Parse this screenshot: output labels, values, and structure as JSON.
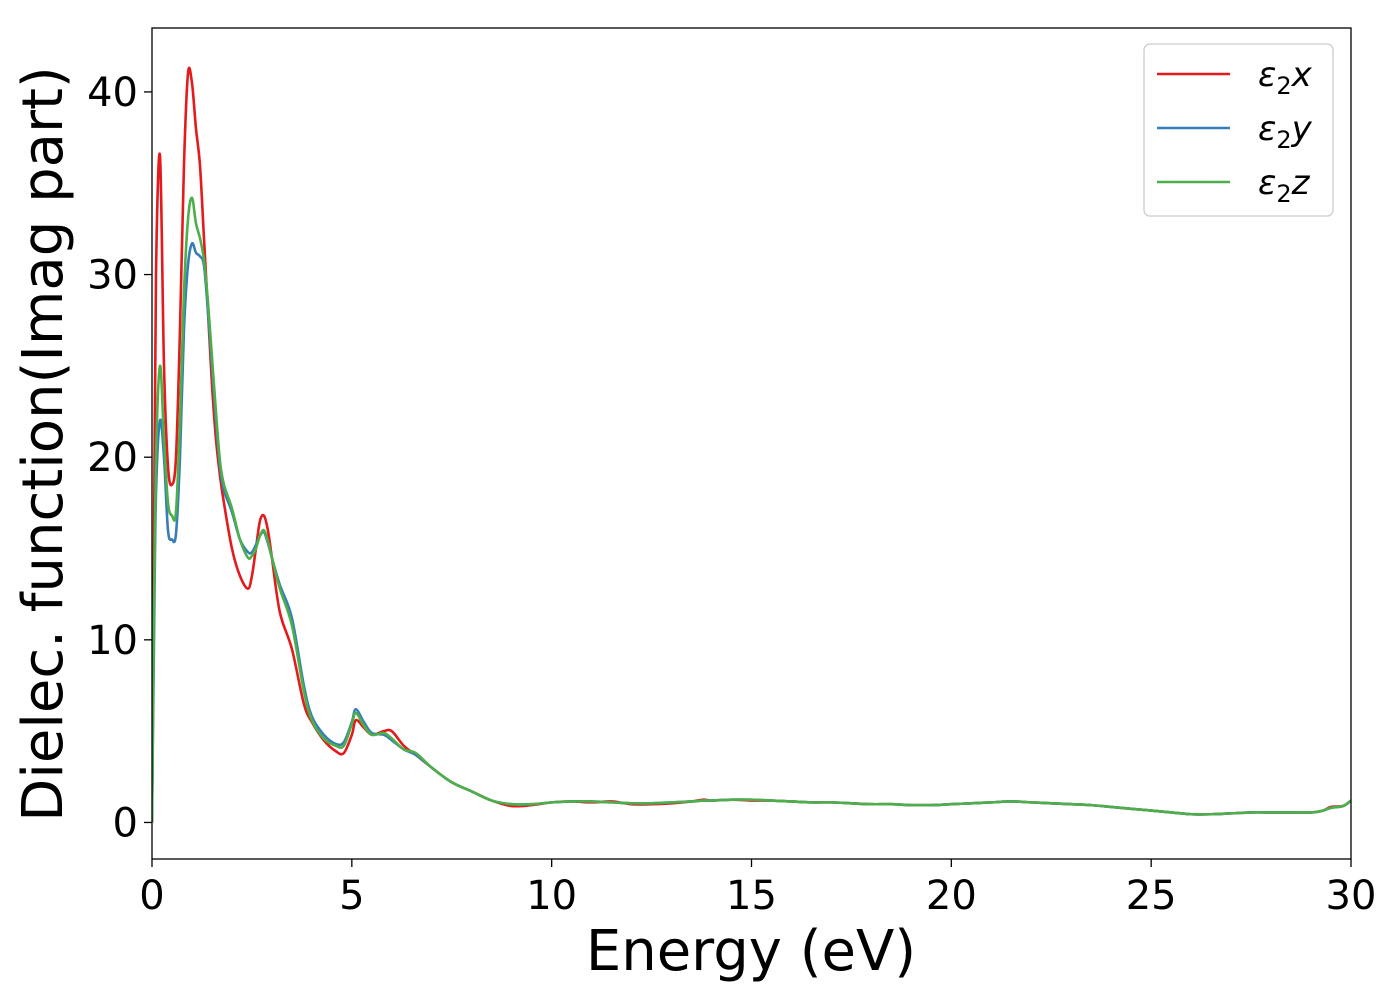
{
  "chart_data": {
    "type": "line",
    "xlabel": "Energy (eV)",
    "ylabel": "Dielec. function(Imag part)",
    "xlim": [
      0,
      30
    ],
    "ylim": [
      -2,
      43.5
    ],
    "xticks": [
      0,
      5,
      10,
      15,
      20,
      25,
      30
    ],
    "yticks": [
      0,
      10,
      20,
      30,
      40
    ],
    "grid": false,
    "legend_position": "top-right",
    "series": [
      {
        "name": "ε₂x",
        "legend": {
          "base": "ε",
          "sub": "2",
          "suffix": "x"
        },
        "color": "#e41a1c",
        "x": [
          0,
          0.05,
          0.1,
          0.2,
          0.3,
          0.4,
          0.5,
          0.6,
          0.7,
          0.8,
          0.9,
          1.0,
          1.1,
          1.2,
          1.3,
          1.4,
          1.5,
          1.6,
          1.7,
          1.8,
          2.0,
          2.2,
          2.4,
          2.5,
          2.6,
          2.7,
          2.8,
          2.9,
          3.0,
          3.2,
          3.5,
          3.8,
          4.0,
          4.3,
          4.6,
          4.8,
          5.0,
          5.1,
          5.3,
          5.5,
          5.8,
          6.0,
          6.3,
          6.6,
          7.0,
          7.5,
          8.0,
          8.5,
          9.0,
          9.5,
          10.0,
          10.5,
          11.0,
          11.5,
          12.0,
          12.5,
          13.0,
          13.5,
          13.8,
          14.0,
          14.5,
          15.0,
          15.5,
          16.0,
          16.5,
          17.0,
          17.5,
          18.0,
          18.5,
          19.0,
          19.5,
          20.0,
          20.5,
          21.0,
          21.5,
          22.0,
          22.5,
          23.0,
          23.5,
          24.0,
          24.5,
          25.0,
          25.5,
          26.0,
          26.5,
          27.0,
          27.5,
          28.0,
          28.5,
          29.0,
          29.3,
          29.5,
          29.8,
          30.0
        ],
        "y": [
          0,
          15,
          30,
          36.5,
          25,
          19.5,
          18.5,
          20,
          27,
          36,
          41,
          40.5,
          38,
          36,
          32,
          28,
          24,
          21,
          19,
          17.5,
          15,
          13.5,
          12.8,
          13.5,
          15,
          16.5,
          16.8,
          16,
          14.5,
          11.5,
          9.5,
          6.5,
          5.5,
          4.5,
          3.9,
          3.8,
          4.8,
          5.6,
          5.2,
          4.8,
          5.0,
          5.0,
          4.2,
          3.7,
          3.0,
          2.2,
          1.7,
          1.2,
          0.9,
          0.95,
          1.1,
          1.15,
          1.1,
          1.15,
          1.0,
          1.0,
          1.05,
          1.15,
          1.25,
          1.2,
          1.25,
          1.2,
          1.2,
          1.15,
          1.1,
          1.1,
          1.05,
          1.0,
          1.0,
          0.95,
          0.95,
          1.0,
          1.05,
          1.1,
          1.15,
          1.1,
          1.05,
          1.0,
          0.95,
          0.85,
          0.75,
          0.65,
          0.55,
          0.45,
          0.45,
          0.5,
          0.55,
          0.55,
          0.55,
          0.55,
          0.65,
          0.85,
          0.9,
          1.2
        ]
      },
      {
        "name": "ε₂y",
        "legend": {
          "base": "ε",
          "sub": "2",
          "suffix": "y"
        },
        "color": "#377eb8",
        "x": [
          0,
          0.05,
          0.1,
          0.2,
          0.3,
          0.4,
          0.5,
          0.6,
          0.7,
          0.8,
          0.9,
          1.0,
          1.1,
          1.2,
          1.3,
          1.4,
          1.5,
          1.6,
          1.7,
          1.8,
          2.0,
          2.2,
          2.4,
          2.5,
          2.6,
          2.7,
          2.8,
          2.9,
          3.0,
          3.2,
          3.5,
          3.8,
          4.0,
          4.3,
          4.6,
          4.8,
          5.0,
          5.1,
          5.3,
          5.5,
          5.8,
          6.0,
          6.3,
          6.6,
          7.0,
          7.5,
          8.0,
          8.5,
          9.0,
          9.5,
          10.0,
          10.5,
          11.0,
          11.5,
          12.0,
          12.5,
          13.0,
          13.5,
          13.8,
          14.0,
          14.5,
          15.0,
          15.5,
          16.0,
          16.5,
          17.0,
          17.5,
          18.0,
          18.5,
          19.0,
          19.5,
          20.0,
          20.5,
          21.0,
          21.5,
          22.0,
          22.5,
          23.0,
          23.5,
          24.0,
          24.5,
          25.0,
          25.5,
          26.0,
          26.5,
          27.0,
          27.5,
          28.0,
          28.5,
          29.0,
          29.3,
          29.5,
          29.8,
          30.0
        ],
        "y": [
          0,
          10,
          18,
          22,
          20,
          16,
          15.5,
          15.8,
          20,
          27,
          30.5,
          31.7,
          31.2,
          31.0,
          30.5,
          28,
          25,
          22,
          19.5,
          18.2,
          17,
          15.5,
          14.8,
          14.8,
          15.2,
          15.7,
          15.9,
          15.3,
          14.5,
          13,
          11.2,
          7.5,
          5.8,
          4.8,
          4.3,
          4.4,
          5.5,
          6.2,
          5.5,
          4.9,
          4.8,
          4.5,
          4.0,
          3.7,
          3.0,
          2.2,
          1.7,
          1.2,
          1.0,
          1.0,
          1.1,
          1.15,
          1.15,
          1.1,
          1.05,
          1.05,
          1.1,
          1.15,
          1.2,
          1.2,
          1.25,
          1.25,
          1.2,
          1.15,
          1.1,
          1.1,
          1.05,
          1.0,
          1.0,
          0.95,
          0.95,
          1.0,
          1.05,
          1.1,
          1.15,
          1.1,
          1.05,
          1.0,
          0.95,
          0.85,
          0.75,
          0.65,
          0.55,
          0.45,
          0.45,
          0.5,
          0.55,
          0.55,
          0.55,
          0.55,
          0.65,
          0.8,
          0.9,
          1.2
        ]
      },
      {
        "name": "ε₂z",
        "legend": {
          "base": "ε",
          "sub": "2",
          "suffix": "z"
        },
        "color": "#4daf4a",
        "x": [
          0,
          0.05,
          0.1,
          0.2,
          0.3,
          0.4,
          0.5,
          0.6,
          0.7,
          0.8,
          0.9,
          1.0,
          1.1,
          1.2,
          1.3,
          1.4,
          1.5,
          1.6,
          1.7,
          1.8,
          2.0,
          2.2,
          2.4,
          2.5,
          2.6,
          2.7,
          2.8,
          2.9,
          3.0,
          3.2,
          3.5,
          3.8,
          4.0,
          4.3,
          4.6,
          4.8,
          5.0,
          5.1,
          5.3,
          5.5,
          5.8,
          6.0,
          6.3,
          6.6,
          7.0,
          7.5,
          8.0,
          8.5,
          9.0,
          9.5,
          10.0,
          10.5,
          11.0,
          11.5,
          12.0,
          12.5,
          13.0,
          13.5,
          13.8,
          14.0,
          14.5,
          15.0,
          15.5,
          16.0,
          16.5,
          17.0,
          17.5,
          18.0,
          18.5,
          19.0,
          19.5,
          20.0,
          20.5,
          21.0,
          21.5,
          22.0,
          22.5,
          23.0,
          23.5,
          24.0,
          24.5,
          25.0,
          25.5,
          26.0,
          26.5,
          27.0,
          27.5,
          28.0,
          28.5,
          29.0,
          29.3,
          29.5,
          29.8,
          30.0
        ],
        "y": [
          0,
          12,
          20,
          25,
          21,
          17.5,
          16.8,
          17,
          22,
          29,
          33,
          34.2,
          32.8,
          32,
          30.8,
          28.5,
          25.5,
          22.5,
          19.8,
          18.5,
          17.2,
          15.5,
          14.5,
          14.6,
          15.0,
          15.7,
          16.0,
          15.4,
          14.5,
          12.8,
          10.8,
          7.2,
          5.6,
          4.6,
          4.2,
          4.2,
          5.4,
          6.0,
          5.3,
          4.8,
          4.9,
          4.6,
          4.0,
          3.8,
          3.0,
          2.2,
          1.7,
          1.2,
          1.0,
          1.0,
          1.1,
          1.15,
          1.15,
          1.1,
          1.05,
          1.05,
          1.1,
          1.15,
          1.2,
          1.2,
          1.25,
          1.25,
          1.2,
          1.15,
          1.1,
          1.1,
          1.05,
          1.0,
          1.0,
          0.95,
          0.95,
          1.0,
          1.05,
          1.1,
          1.15,
          1.1,
          1.05,
          1.0,
          0.95,
          0.85,
          0.75,
          0.65,
          0.55,
          0.45,
          0.45,
          0.5,
          0.55,
          0.55,
          0.55,
          0.55,
          0.65,
          0.8,
          0.9,
          1.2
        ]
      }
    ]
  }
}
